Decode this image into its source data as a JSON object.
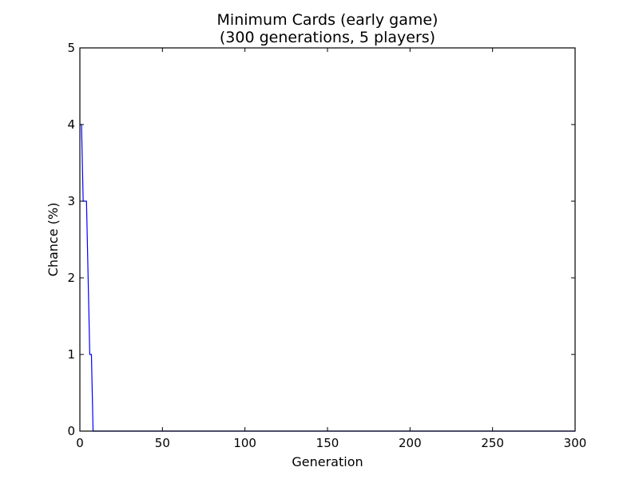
{
  "chart_data": {
    "type": "line",
    "title": "Minimum Cards (early game)",
    "subtitle": "(300 generations, 5 players)",
    "xlabel": "Generation",
    "ylabel": "Chance (%)",
    "xlim": [
      0,
      300
    ],
    "ylim": [
      0,
      5
    ],
    "x_ticks": [
      0,
      50,
      100,
      150,
      200,
      250,
      300
    ],
    "y_ticks": [
      0,
      1,
      2,
      3,
      4,
      5
    ],
    "grid": false,
    "series": [
      {
        "color": "#0000ff",
        "x": [
          0,
          1,
          2,
          3,
          4,
          5,
          6,
          7,
          8,
          300
        ],
        "y": [
          4,
          4,
          3,
          3,
          3,
          2,
          1,
          1,
          0,
          0
        ]
      }
    ]
  }
}
